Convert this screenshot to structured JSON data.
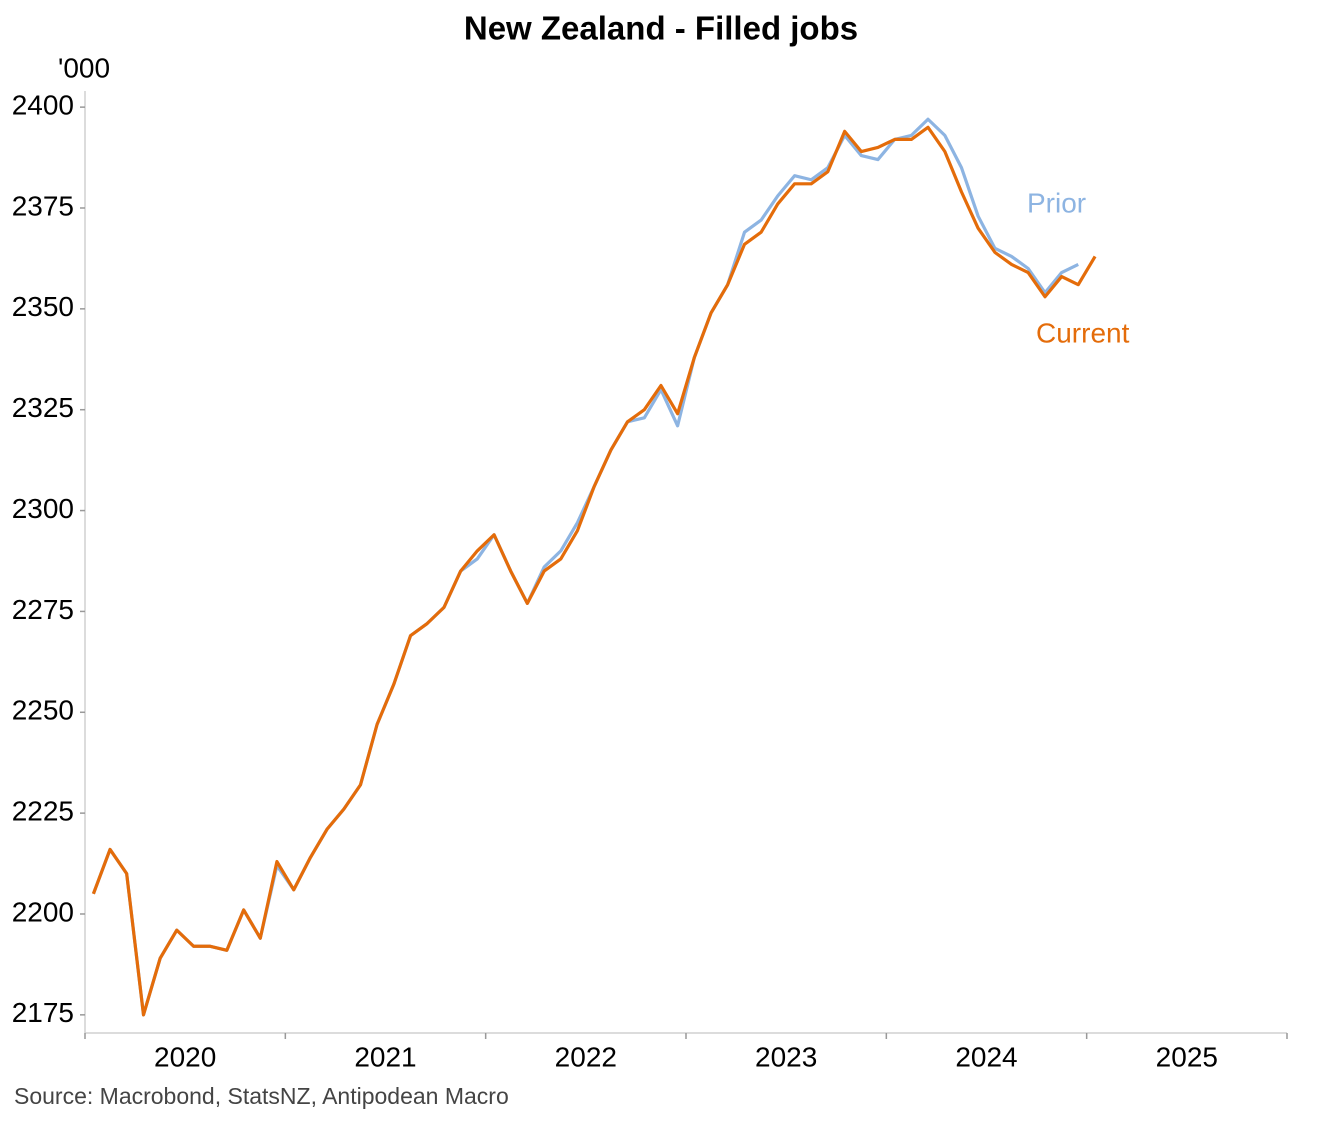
{
  "chart_data": {
    "type": "line",
    "title": "New Zealand - Filled jobs",
    "y_unit": "'000",
    "source": "Source: Macrobond, StatsNZ, Antipodean Macro",
    "x": [
      2020.042,
      2020.125,
      2020.208,
      2020.292,
      2020.375,
      2020.458,
      2020.542,
      2020.625,
      2020.708,
      2020.792,
      2020.875,
      2020.958,
      2021.042,
      2021.125,
      2021.208,
      2021.292,
      2021.375,
      2021.458,
      2021.542,
      2021.625,
      2021.708,
      2021.792,
      2021.875,
      2021.958,
      2022.042,
      2022.125,
      2022.208,
      2022.292,
      2022.375,
      2022.458,
      2022.542,
      2022.625,
      2022.708,
      2022.792,
      2022.875,
      2022.958,
      2023.042,
      2023.125,
      2023.208,
      2023.292,
      2023.375,
      2023.458,
      2023.542,
      2023.625,
      2023.708,
      2023.792,
      2023.875,
      2023.958,
      2024.042,
      2024.125,
      2024.208,
      2024.292,
      2024.375,
      2024.458,
      2024.542,
      2024.625,
      2024.708,
      2024.792,
      2024.875,
      2024.958,
      2025.042
    ],
    "series": [
      {
        "name": "Prior",
        "color": "#8db4e2",
        "values": [
          2205,
          2216,
          2210,
          2175,
          2189,
          2196,
          2192,
          2192,
          2191,
          2201,
          2194,
          2212,
          2206,
          2214,
          2221,
          2226,
          2232,
          2247,
          2257,
          2269,
          2272,
          2276,
          2285,
          2288,
          2294,
          2285,
          2277,
          2286,
          2290,
          2297,
          2306,
          2315,
          2322,
          2323,
          2330,
          2321,
          2338,
          2349,
          2356,
          2369,
          2372,
          2378,
          2383,
          2382,
          2385,
          2393,
          2388,
          2387,
          2392,
          2393,
          2397,
          2393,
          2385,
          2373,
          2365,
          2363,
          2360,
          2354,
          2359,
          2361,
          null
        ]
      },
      {
        "name": "Current",
        "color": "#e46c0a",
        "values": [
          2205,
          2216,
          2210,
          2175,
          2189,
          2196,
          2192,
          2192,
          2191,
          2201,
          2194,
          2213,
          2206,
          2214,
          2221,
          2226,
          2232,
          2247,
          2257,
          2269,
          2272,
          2276,
          2285,
          2290,
          2294,
          2285,
          2277,
          2285,
          2288,
          2295,
          2306,
          2315,
          2322,
          2325,
          2331,
          2324,
          2338,
          2349,
          2356,
          2366,
          2369,
          2376,
          2381,
          2381,
          2384,
          2394,
          2389,
          2390,
          2392,
          2392,
          2395,
          2389,
          2379,
          2370,
          2364,
          2361,
          2359,
          2353,
          2358,
          2356,
          2363
        ]
      }
    ],
    "xlim": [
      2020,
      2026
    ],
    "xticks": [
      2020,
      2021,
      2022,
      2023,
      2024,
      2025
    ],
    "ylim": [
      2170.5,
      2404
    ],
    "yticks": [
      2175,
      2200,
      2225,
      2250,
      2275,
      2300,
      2325,
      2350,
      2375,
      2400
    ],
    "grid": false
  }
}
